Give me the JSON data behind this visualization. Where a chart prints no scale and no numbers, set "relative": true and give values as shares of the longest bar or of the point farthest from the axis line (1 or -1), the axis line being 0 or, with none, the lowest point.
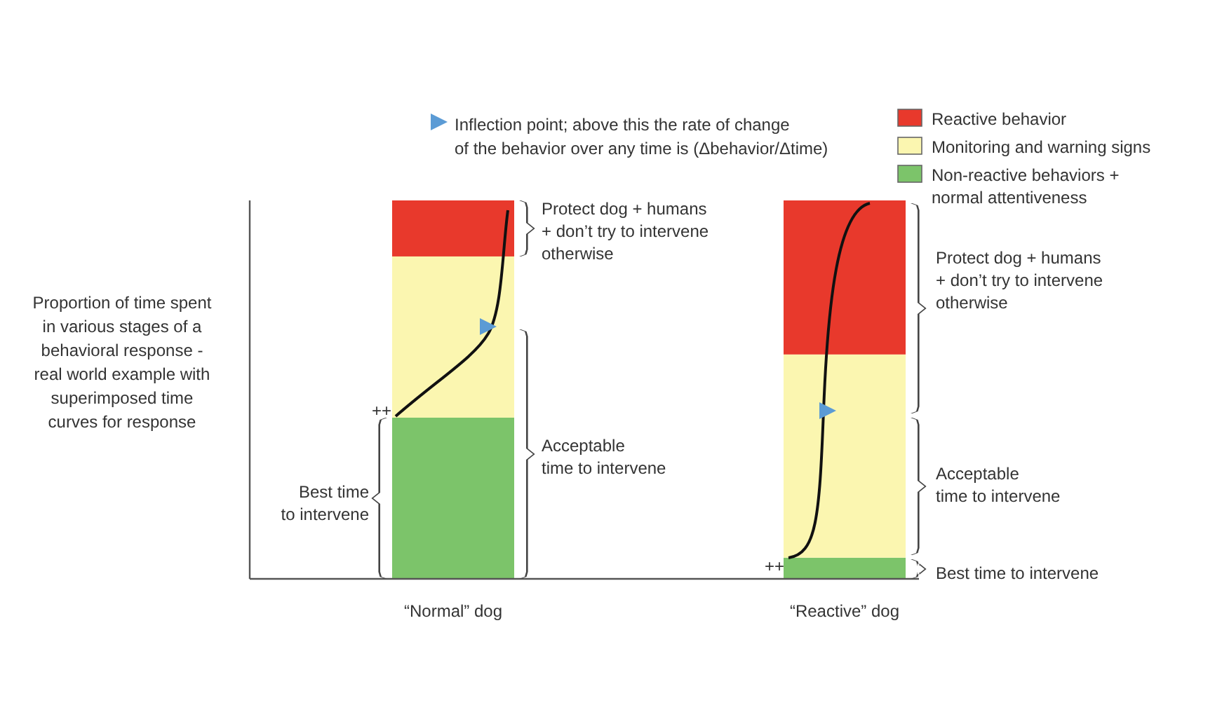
{
  "chart_data": {
    "type": "bar",
    "stacked": true,
    "relative": true,
    "ylabel": "Proportion of time spent\nin various stages of a\nbehavioral response -\nreal world example with\nsuperimposed time\ncurves for response",
    "categories": [
      "“Normal” dog",
      "“Reactive” dog"
    ],
    "series": [
      {
        "name": "Non-reactive behaviors +\nnormal attentiveness",
        "color": "#7cc46a",
        "values": [
          0.426,
          0.056
        ]
      },
      {
        "name": "Monitoring and warning signs",
        "color": "#fbf6b0",
        "values": [
          0.426,
          0.537
        ]
      },
      {
        "name": "Reactive behavior",
        "color": "#e8392c",
        "values": [
          0.148,
          0.407
        ]
      }
    ],
    "legend": "top right",
    "annotations": [
      "Inflection point; above this the rate of change\nof the behavior over any time is (Δbehavior/Δtime)",
      "Protect dog + humans\n+ don’t try to intervene\notherwise",
      "Acceptable\ntime to intervene",
      "Best time\nto intervene",
      "++",
      "Protect dog + humans\n+ don’t try to intervene\notherwise",
      "Acceptable\ntime to intervene",
      "Best time to intervene",
      "++"
    ]
  }
}
